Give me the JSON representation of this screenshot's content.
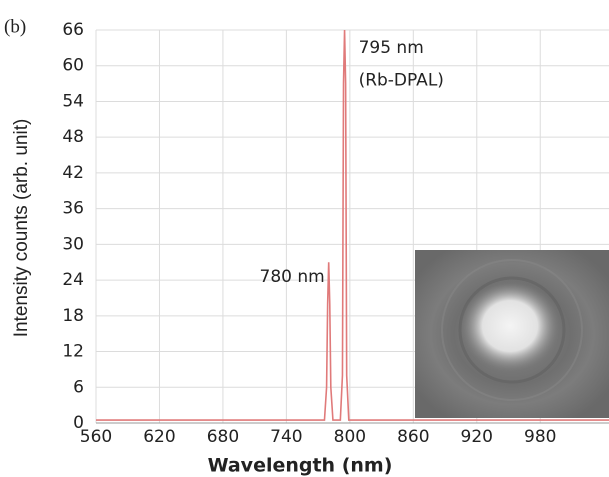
{
  "chart_data": {
    "type": "line",
    "panel_label": "(b)",
    "x_label": "Wavelength (nm)",
    "y_label": "Intensity counts (arb. unit)",
    "x": [
      560,
      776,
      778,
      779,
      780,
      781,
      782,
      784,
      791,
      793,
      794,
      795,
      796,
      797,
      799,
      1045
    ],
    "series": [
      {
        "color": "#e07a7a",
        "values": [
          0.5,
          0.5,
          6,
          20,
          27,
          20,
          6,
          0.5,
          0.5,
          8,
          57,
          66,
          57,
          8,
          0.5,
          0.5
        ]
      }
    ],
    "xlim": [
      560,
      1045
    ],
    "xticks": [
      560,
      620,
      680,
      740,
      800,
      860,
      920,
      980
    ],
    "ylim": [
      0,
      66
    ],
    "yticks": [
      0,
      6,
      12,
      18,
      24,
      30,
      36,
      42,
      48,
      54,
      60,
      66
    ],
    "grid": true,
    "annotations": [
      {
        "text": "795 nm",
        "x": 795,
        "y": 63
      },
      {
        "text": "(Rb-DPAL)",
        "x": 795,
        "y": 57.5
      },
      {
        "text": "780 nm",
        "x": 780,
        "y": 24.5
      }
    ]
  }
}
